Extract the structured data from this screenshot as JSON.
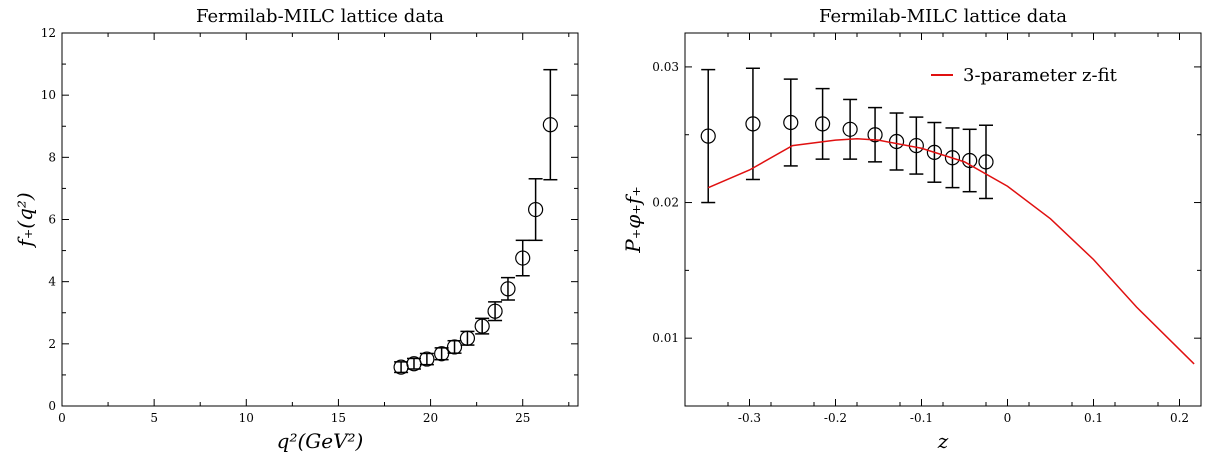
{
  "chart_data": [
    {
      "type": "scatter",
      "title": "Fermilab-MILC lattice data",
      "xlabel": "q²(GeV²)",
      "ylabel": "f₊(q²)",
      "xlim": [
        0,
        28
      ],
      "ylim": [
        0,
        12
      ],
      "xticks": [
        0,
        5,
        10,
        15,
        20,
        25
      ],
      "yticks": [
        0,
        2,
        4,
        6,
        8,
        10,
        12
      ],
      "grid": false,
      "series": [
        {
          "marker": "open-circle",
          "points": [
            {
              "x": 18.4,
              "y": 1.25,
              "err": 0.17
            },
            {
              "x": 19.1,
              "y": 1.36,
              "err": 0.17
            },
            {
              "x": 19.8,
              "y": 1.51,
              "err": 0.18
            },
            {
              "x": 20.6,
              "y": 1.68,
              "err": 0.19
            },
            {
              "x": 21.3,
              "y": 1.9,
              "err": 0.2
            },
            {
              "x": 22.0,
              "y": 2.18,
              "err": 0.22
            },
            {
              "x": 22.8,
              "y": 2.57,
              "err": 0.25
            },
            {
              "x": 23.5,
              "y": 3.05,
              "err": 0.3
            },
            {
              "x": 24.2,
              "y": 3.77,
              "err": 0.36
            },
            {
              "x": 25.0,
              "y": 4.76,
              "err": 0.57
            },
            {
              "x": 25.7,
              "y": 6.32,
              "err": 0.99
            },
            {
              "x": 26.5,
              "y": 9.05,
              "err": 1.77
            }
          ]
        }
      ]
    },
    {
      "type": "scatter",
      "title": "Fermilab-MILC lattice data",
      "xlabel": "z",
      "ylabel": "P₊φ₊f₊",
      "xlim": [
        -0.375,
        0.225
      ],
      "ylim": [
        0.005,
        0.0325
      ],
      "xticks": [
        -0.3,
        -0.2,
        -0.1,
        0,
        0.1,
        0.2
      ],
      "xtick_labels": [
        "-0.3",
        "-0.2",
        "-0.1",
        "0",
        "0.1",
        "0.2"
      ],
      "yticks": [
        0.01,
        0.02,
        0.03
      ],
      "ytick_labels": [
        "0.01",
        "0.02",
        "0.03"
      ],
      "grid": false,
      "legend": "top-right",
      "series": [
        {
          "marker": "open-circle",
          "points": [
            {
              "x": -0.348,
              "y": 0.0249,
              "err": 0.0049
            },
            {
              "x": -0.296,
              "y": 0.0258,
              "err": 0.0041
            },
            {
              "x": -0.252,
              "y": 0.0259,
              "err": 0.0032
            },
            {
              "x": -0.215,
              "y": 0.0258,
              "err": 0.0026
            },
            {
              "x": -0.183,
              "y": 0.0254,
              "err": 0.0022
            },
            {
              "x": -0.154,
              "y": 0.025,
              "err": 0.002
            },
            {
              "x": -0.129,
              "y": 0.0245,
              "err": 0.0021
            },
            {
              "x": -0.106,
              "y": 0.0242,
              "err": 0.0021
            },
            {
              "x": -0.085,
              "y": 0.0237,
              "err": 0.0022
            },
            {
              "x": -0.064,
              "y": 0.0233,
              "err": 0.0022
            },
            {
              "x": -0.044,
              "y": 0.0231,
              "err": 0.0023
            },
            {
              "x": -0.025,
              "y": 0.023,
              "err": 0.0027
            }
          ]
        },
        {
          "name": "3-parameter z-fit",
          "line": true,
          "color": "#e01010",
          "x": [
            -0.348,
            -0.3,
            -0.25,
            -0.2,
            -0.175,
            -0.15,
            -0.1,
            -0.05,
            0.0,
            0.05,
            0.1,
            0.15,
            0.217
          ],
          "y": [
            0.0211,
            0.0224,
            0.0242,
            0.0246,
            0.0247,
            0.0246,
            0.024,
            0.023,
            0.0212,
            0.0188,
            0.0158,
            0.0123,
            0.0081
          ]
        }
      ]
    }
  ]
}
